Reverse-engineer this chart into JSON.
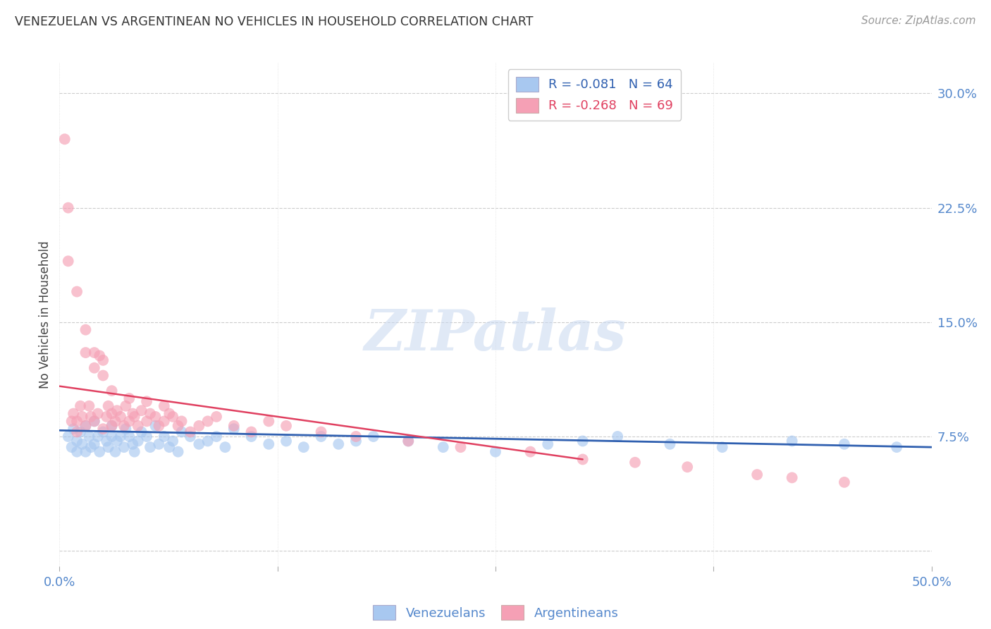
{
  "title": "VENEZUELAN VS ARGENTINEAN NO VEHICLES IN HOUSEHOLD CORRELATION CHART",
  "source": "Source: ZipAtlas.com",
  "ylabel": "No Vehicles in Household",
  "xlim": [
    0.0,
    0.5
  ],
  "ylim": [
    -0.01,
    0.32
  ],
  "yticks": [
    0.0,
    0.075,
    0.15,
    0.225,
    0.3
  ],
  "ytick_labels": [
    "",
    "7.5%",
    "15.0%",
    "22.5%",
    "30.0%"
  ],
  "xticks": [
    0.0,
    0.125,
    0.25,
    0.375,
    0.5
  ],
  "xtick_labels": [
    "0.0%",
    "",
    "",
    "",
    "50.0%"
  ],
  "blue_color": "#a8c8f0",
  "pink_color": "#f5a0b5",
  "blue_line_color": "#3060b0",
  "pink_line_color": "#e04060",
  "legend_blue_label": "R = -0.081   N = 64",
  "legend_pink_label": "R = -0.268   N = 69",
  "legend_bottom_blue": "Venezuelans",
  "legend_bottom_pink": "Argentineans",
  "venezuelan_x": [
    0.005,
    0.007,
    0.008,
    0.01,
    0.01,
    0.012,
    0.013,
    0.015,
    0.015,
    0.017,
    0.018,
    0.02,
    0.02,
    0.022,
    0.023,
    0.025,
    0.027,
    0.028,
    0.03,
    0.03,
    0.032,
    0.033,
    0.035,
    0.037,
    0.038,
    0.04,
    0.042,
    0.043,
    0.045,
    0.047,
    0.05,
    0.052,
    0.055,
    0.057,
    0.06,
    0.063,
    0.065,
    0.068,
    0.07,
    0.075,
    0.08,
    0.085,
    0.09,
    0.095,
    0.1,
    0.11,
    0.12,
    0.13,
    0.14,
    0.15,
    0.16,
    0.17,
    0.18,
    0.2,
    0.22,
    0.25,
    0.28,
    0.3,
    0.32,
    0.35,
    0.38,
    0.42,
    0.45,
    0.48
  ],
  "venezuelan_y": [
    0.075,
    0.068,
    0.08,
    0.065,
    0.072,
    0.078,
    0.07,
    0.065,
    0.082,
    0.075,
    0.068,
    0.07,
    0.085,
    0.075,
    0.065,
    0.078,
    0.072,
    0.068,
    0.075,
    0.082,
    0.065,
    0.072,
    0.075,
    0.068,
    0.08,
    0.075,
    0.07,
    0.065,
    0.072,
    0.078,
    0.075,
    0.068,
    0.082,
    0.07,
    0.075,
    0.068,
    0.072,
    0.065,
    0.078,
    0.075,
    0.07,
    0.072,
    0.075,
    0.068,
    0.08,
    0.075,
    0.07,
    0.072,
    0.068,
    0.075,
    0.07,
    0.072,
    0.075,
    0.072,
    0.068,
    0.065,
    0.07,
    0.072,
    0.075,
    0.07,
    0.068,
    0.072,
    0.07,
    0.068
  ],
  "argentinean_x": [
    0.003,
    0.005,
    0.007,
    0.008,
    0.01,
    0.01,
    0.012,
    0.013,
    0.015,
    0.015,
    0.017,
    0.018,
    0.02,
    0.02,
    0.022,
    0.023,
    0.025,
    0.025,
    0.027,
    0.028,
    0.03,
    0.03,
    0.032,
    0.033,
    0.035,
    0.037,
    0.038,
    0.04,
    0.042,
    0.043,
    0.045,
    0.047,
    0.05,
    0.052,
    0.055,
    0.057,
    0.06,
    0.063,
    0.065,
    0.068,
    0.07,
    0.075,
    0.08,
    0.085,
    0.09,
    0.1,
    0.11,
    0.12,
    0.13,
    0.15,
    0.17,
    0.2,
    0.23,
    0.27,
    0.3,
    0.33,
    0.36,
    0.4,
    0.42,
    0.45,
    0.005,
    0.01,
    0.015,
    0.02,
    0.025,
    0.03,
    0.04,
    0.05,
    0.06
  ],
  "argentinean_y": [
    0.27,
    0.19,
    0.085,
    0.09,
    0.085,
    0.078,
    0.095,
    0.088,
    0.082,
    0.13,
    0.095,
    0.088,
    0.13,
    0.085,
    0.09,
    0.128,
    0.08,
    0.125,
    0.088,
    0.095,
    0.082,
    0.09,
    0.085,
    0.092,
    0.088,
    0.082,
    0.095,
    0.085,
    0.09,
    0.088,
    0.082,
    0.092,
    0.085,
    0.09,
    0.088,
    0.082,
    0.085,
    0.09,
    0.088,
    0.082,
    0.085,
    0.078,
    0.082,
    0.085,
    0.088,
    0.082,
    0.078,
    0.085,
    0.082,
    0.078,
    0.075,
    0.072,
    0.068,
    0.065,
    0.06,
    0.058,
    0.055,
    0.05,
    0.048,
    0.045,
    0.225,
    0.17,
    0.145,
    0.12,
    0.115,
    0.105,
    0.1,
    0.098,
    0.095
  ],
  "blue_trend_x": [
    0.0,
    0.5
  ],
  "blue_trend_y": [
    0.079,
    0.068
  ],
  "pink_trend_x": [
    0.0,
    0.3
  ],
  "pink_trend_y": [
    0.108,
    0.06
  ]
}
